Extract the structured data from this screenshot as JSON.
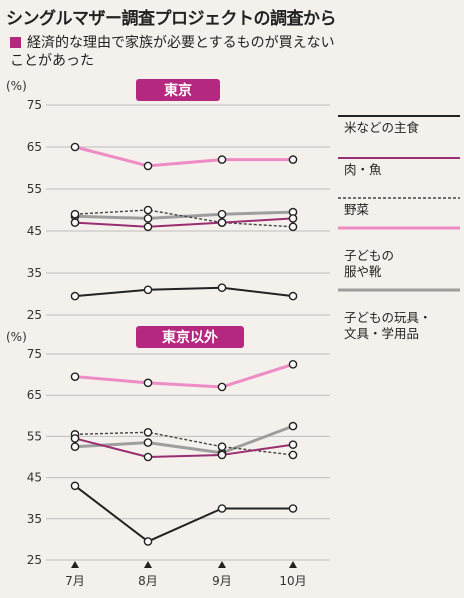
{
  "title": "シングルマザー調査プロジェクトの調査から",
  "subtitle_line1": "経済的な理由で家族が必要とするものが買えない",
  "subtitle_line2": "ことがあった",
  "colors": {
    "accent": "#b5287f",
    "staple": "#222222",
    "meat_fish": "#9a2e72",
    "vegetables": "#444444",
    "kids_clothes": "#ee8cc6",
    "kids_toys": "#9e9e9e"
  },
  "legend": [
    {
      "key": "staple",
      "lines": [
        "米などの主食"
      ],
      "style": "solid-dark"
    },
    {
      "key": "meat_fish",
      "lines": [
        "肉・魚"
      ],
      "style": "solid-purple"
    },
    {
      "key": "vegetables",
      "lines": [
        "野菜"
      ],
      "style": "dotted"
    },
    {
      "key": "kids_clothes",
      "lines": [
        "子どもの",
        "服や靴"
      ],
      "style": "solid-pink"
    },
    {
      "key": "kids_toys",
      "lines": [
        "子どもの玩具・",
        "文具・学用品"
      ],
      "style": "solid-gray"
    }
  ],
  "chart_data": [
    {
      "type": "line",
      "title": "東京",
      "ylabel": "(%)",
      "x": [
        "7月",
        "8月",
        "9月",
        "10月"
      ],
      "yticks": [
        25,
        35,
        45,
        55,
        65,
        75
      ],
      "ylim": [
        25,
        75
      ],
      "grid": true,
      "series": [
        {
          "name": "米などの主食",
          "key": "staple",
          "values": [
            29.5,
            31,
            31.5,
            29.5
          ]
        },
        {
          "name": "肉・魚",
          "key": "meat_fish",
          "values": [
            47,
            46,
            47,
            48
          ]
        },
        {
          "name": "野菜",
          "key": "vegetables",
          "values": [
            49,
            50,
            47,
            46
          ]
        },
        {
          "name": "子どもの服や靴",
          "key": "kids_clothes",
          "values": [
            65,
            60.5,
            62,
            62
          ]
        },
        {
          "name": "子どもの玩具・文具・学用品",
          "key": "kids_toys",
          "values": [
            48.5,
            48,
            49,
            49.5
          ]
        }
      ]
    },
    {
      "type": "line",
      "title": "東京以外",
      "ylabel": "(%)",
      "x": [
        "7月",
        "8月",
        "9月",
        "10月"
      ],
      "yticks": [
        25,
        35,
        45,
        55,
        65,
        75
      ],
      "ylim": [
        25,
        75
      ],
      "grid": true,
      "series": [
        {
          "name": "米などの主食",
          "key": "staple",
          "values": [
            43,
            29.5,
            37.5,
            37.5
          ]
        },
        {
          "name": "肉・魚",
          "key": "meat_fish",
          "values": [
            54.5,
            50,
            50.5,
            53
          ]
        },
        {
          "name": "野菜",
          "key": "vegetables",
          "values": [
            55.5,
            56,
            52.5,
            50.5
          ]
        },
        {
          "name": "子どもの服や靴",
          "key": "kids_clothes",
          "values": [
            69.5,
            68,
            67,
            72.5
          ]
        },
        {
          "name": "子どもの玩具・文具・学用品",
          "key": "kids_toys",
          "values": [
            52.5,
            53.5,
            51,
            57.5
          ]
        }
      ]
    }
  ]
}
